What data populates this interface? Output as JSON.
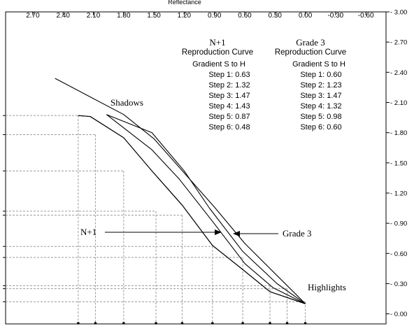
{
  "chart_data": {
    "type": "line",
    "title": "",
    "top_axis_label": "Reflectance",
    "x_ticks": [
      "2.70",
      "2.40",
      "2.10",
      "1.80",
      "1.50",
      "1.20",
      "0.90",
      "0.60",
      "0.30",
      "0.00",
      "-0.30",
      "-0.60"
    ],
    "y_ticks": [
      "3.00",
      "2.70",
      "2.40",
      "2.10",
      "1.80",
      "1.50",
      "1.20",
      "0.90",
      "0.60",
      "0.30",
      "0.00"
    ],
    "xlim": [
      2.97,
      -0.8
    ],
    "ylim": [
      -0.1,
      3.0
    ],
    "grid": false,
    "series": [
      {
        "name": "N+1",
        "points": [
          [
            2.25,
            1.97
          ],
          [
            2.13,
            1.96
          ],
          [
            1.8,
            1.75
          ],
          [
            1.52,
            1.42
          ],
          [
            1.22,
            1.08
          ],
          [
            0.92,
            0.68
          ],
          [
            0.62,
            0.44
          ],
          [
            0.35,
            0.22
          ],
          [
            0.0,
            0.1
          ]
        ]
      },
      {
        "name": "Grade 3",
        "points": [
          [
            1.97,
            1.98
          ],
          [
            1.52,
            1.63
          ],
          [
            1.25,
            1.34
          ],
          [
            0.92,
            0.92
          ],
          [
            0.6,
            0.5
          ],
          [
            0.32,
            0.26
          ],
          [
            0.0,
            0.1
          ]
        ]
      },
      {
        "name": "",
        "points": [
          [
            2.25,
            1.97
          ],
          [
            2.13,
            1.96
          ],
          [
            1.8,
            1.75
          ],
          [
            1.52,
            1.42
          ],
          [
            1.22,
            1.08
          ],
          [
            0.92,
            0.68
          ],
          [
            0.62,
            0.44
          ],
          [
            0.35,
            0.22
          ],
          [
            0.0,
            0.1
          ]
        ]
      },
      {
        "name": "",
        "points": [
          [
            1.97,
            1.98
          ],
          [
            1.52,
            1.8
          ],
          [
            1.2,
            1.42
          ],
          [
            0.95,
            1.05
          ],
          [
            0.62,
            0.62
          ],
          [
            0.28,
            0.3
          ],
          [
            0.0,
            0.1
          ]
        ]
      },
      {
        "name": "",
        "points": [
          [
            2.48,
            2.34
          ],
          [
            1.8,
            1.98
          ],
          [
            1.5,
            1.74
          ],
          [
            0.9,
            1.06
          ],
          [
            0.6,
            0.7
          ],
          [
            0.0,
            0.1
          ]
        ]
      }
    ],
    "dashed_refs": [
      {
        "x": 2.25,
        "y": 1.97
      },
      {
        "x": 2.08,
        "y": 1.78
      },
      {
        "x": 1.8,
        "y": 1.42
      },
      {
        "x": 1.48,
        "y": 1.02
      },
      {
        "x": 1.22,
        "y": 0.98
      },
      {
        "x": 0.92,
        "y": 0.67
      },
      {
        "x": 0.62,
        "y": 0.56
      },
      {
        "x": 0.35,
        "y": 0.28
      },
      {
        "x": 0.18,
        "y": 0.25
      },
      {
        "x": 0.0,
        "y": 0.12
      }
    ],
    "annotations": {
      "shadows": "Shadows",
      "highlights": "Highlights",
      "n1_arrow_label": "N+1",
      "grade3_arrow_label": "Grade 3"
    },
    "left_block": {
      "title": "N+1",
      "subtitle": "Reproduction Curve",
      "header": "Gradient S to H",
      "steps": [
        "Step 1: 0.63",
        "Step 2: 1.32",
        "Step 3: 1.47",
        "Step 4: 1.43",
        "Step 5: 0.87",
        "Step 6: 0.48"
      ]
    },
    "right_block": {
      "title": "Grade 3",
      "subtitle": "Reproduction Curve",
      "header": "Gradient S to H",
      "steps": [
        "Step 1: 0.60",
        "Step 2: 1.23",
        "Step 3: 1.47",
        "Step 4: 1.32",
        "Step 5: 0.98",
        "Step 6: 0.60"
      ]
    }
  }
}
